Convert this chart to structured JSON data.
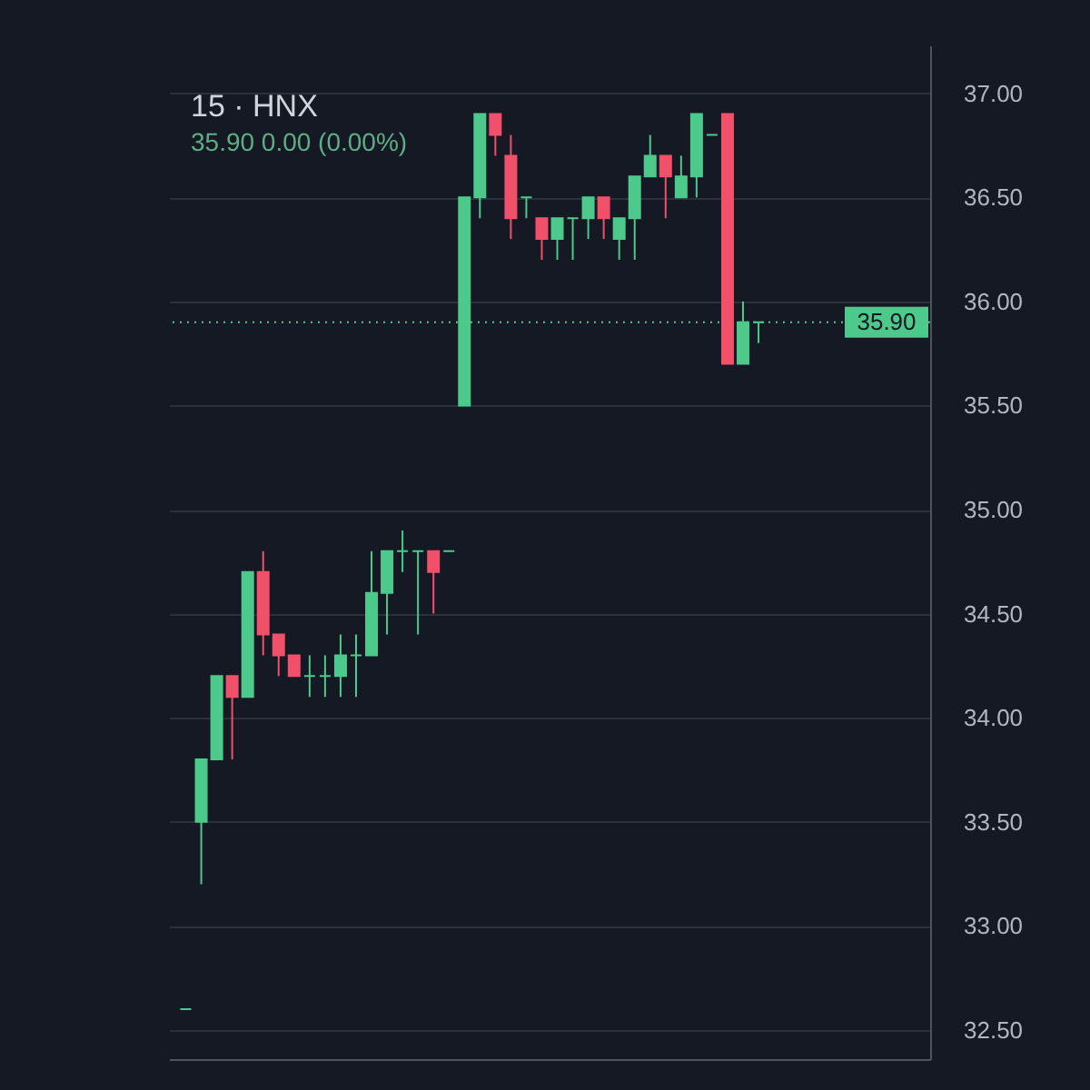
{
  "chart_data": {
    "type": "candlestick",
    "title": "15 · HNX",
    "subtitle": "35.90 0.00 (0.00%)",
    "categories": [
      null,
      null,
      null,
      null,
      null,
      null,
      null,
      null,
      null,
      null,
      null,
      null,
      null,
      null,
      null,
      null,
      null,
      null,
      null,
      null,
      null,
      null,
      null,
      null,
      null,
      null,
      null,
      null,
      null,
      null,
      null,
      null,
      null,
      null,
      null,
      null,
      null,
      null,
      null,
      null,
      null,
      null,
      null,
      null,
      null,
      null,
      null,
      null
    ],
    "ohlc": [
      [
        32.6,
        32.6,
        32.6,
        32.6
      ],
      [
        33.5,
        33.8,
        33.2,
        33.8
      ],
      [
        33.8,
        34.2,
        33.8,
        34.2
      ],
      [
        34.2,
        34.2,
        33.8,
        34.1
      ],
      [
        34.1,
        34.7,
        34.1,
        34.7
      ],
      [
        34.7,
        34.8,
        34.3,
        34.4
      ],
      [
        34.4,
        34.4,
        34.2,
        34.3
      ],
      [
        34.3,
        34.3,
        34.2,
        34.2
      ],
      [
        34.2,
        34.3,
        34.1,
        34.2
      ],
      [
        34.2,
        34.3,
        34.1,
        34.2
      ],
      [
        34.2,
        34.4,
        34.1,
        34.3
      ],
      [
        34.3,
        34.4,
        34.1,
        34.3
      ],
      [
        34.3,
        34.8,
        34.3,
        34.6
      ],
      [
        34.6,
        34.8,
        34.4,
        34.8
      ],
      [
        34.8,
        34.9,
        34.7,
        34.8
      ],
      [
        34.8,
        34.8,
        34.4,
        34.8
      ],
      [
        34.8,
        34.8,
        34.5,
        34.7
      ],
      [
        34.8,
        34.8,
        34.8,
        34.8
      ],
      [
        35.5,
        36.5,
        35.5,
        36.5
      ],
      [
        36.5,
        36.9,
        36.4,
        36.9
      ],
      [
        36.9,
        36.9,
        36.7,
        36.8
      ],
      [
        36.7,
        36.8,
        36.3,
        36.4
      ],
      [
        36.5,
        36.5,
        36.4,
        36.5
      ],
      [
        36.4,
        36.4,
        36.2,
        36.3
      ],
      [
        36.3,
        36.4,
        36.2,
        36.4
      ],
      [
        36.4,
        36.4,
        36.2,
        36.4
      ],
      [
        36.4,
        36.5,
        36.3,
        36.5
      ],
      [
        36.5,
        36.5,
        36.3,
        36.4
      ],
      [
        36.3,
        36.4,
        36.2,
        36.4
      ],
      [
        36.4,
        36.6,
        36.2,
        36.6
      ],
      [
        36.6,
        36.8,
        36.6,
        36.7
      ],
      [
        36.7,
        36.7,
        36.4,
        36.6
      ],
      [
        36.5,
        36.7,
        36.5,
        36.6
      ],
      [
        36.6,
        36.9,
        36.5,
        36.9
      ],
      [
        36.8,
        36.8,
        36.8,
        36.8
      ],
      [
        36.9,
        36.9,
        35.7,
        35.7
      ],
      [
        35.7,
        36.0,
        35.7,
        35.9
      ],
      [
        35.9,
        35.9,
        35.8,
        35.9
      ],
      null,
      null,
      null,
      null,
      null,
      null,
      null,
      null,
      null,
      null
    ],
    "colors": [
      "#4cc98b",
      "#4cc98b",
      "#4cc98b",
      "#f0506a",
      "#4cc98b",
      "#f0506a",
      "#f0506a",
      "#f0506a",
      "#4cc98b",
      "#4cc98b",
      "#4cc98b",
      "#4cc98b",
      "#4cc98b",
      "#4cc98b",
      "#4cc98b",
      "#4cc98b",
      "#f0506a",
      "#4cc98b",
      "#4cc98b",
      "#4cc98b",
      "#f0506a",
      "#f0506a",
      "#4cc98b",
      "#f0506a",
      "#4cc98b",
      "#4cc98b",
      "#4cc98b",
      "#f0506a",
      "#4cc98b",
      "#4cc98b",
      "#4cc98b",
      "#f0506a",
      "#4cc98b",
      "#4cc98b",
      "#4cc98b",
      "#f0506a",
      "#4cc98b",
      "#4cc98b",
      null,
      null,
      null,
      null,
      null,
      null,
      null,
      null,
      null,
      null
    ],
    "ylim": [
      32.36,
      37.23
    ],
    "yticks": [
      {
        "value": 32.5,
        "label": "32.50"
      },
      {
        "value": 33,
        "label": "33.00"
      },
      {
        "value": 33.5,
        "label": "33.50"
      },
      {
        "value": 34,
        "label": "34.00"
      },
      {
        "value": 34.5,
        "label": "34.50"
      },
      {
        "value": 35,
        "label": "35.00"
      },
      {
        "value": 35.5,
        "label": "35.50"
      },
      {
        "value": 36,
        "label": "36.00"
      },
      {
        "value": 36.5,
        "label": "36.50"
      },
      {
        "value": 37,
        "label": "37.00"
      }
    ],
    "ref_lines": [
      {
        "axis": "y",
        "value": 35.9,
        "label": "35.90",
        "color": "#4cc98b",
        "line_style": "dotted"
      }
    ],
    "grid": "y",
    "tick_labels": "y"
  }
}
